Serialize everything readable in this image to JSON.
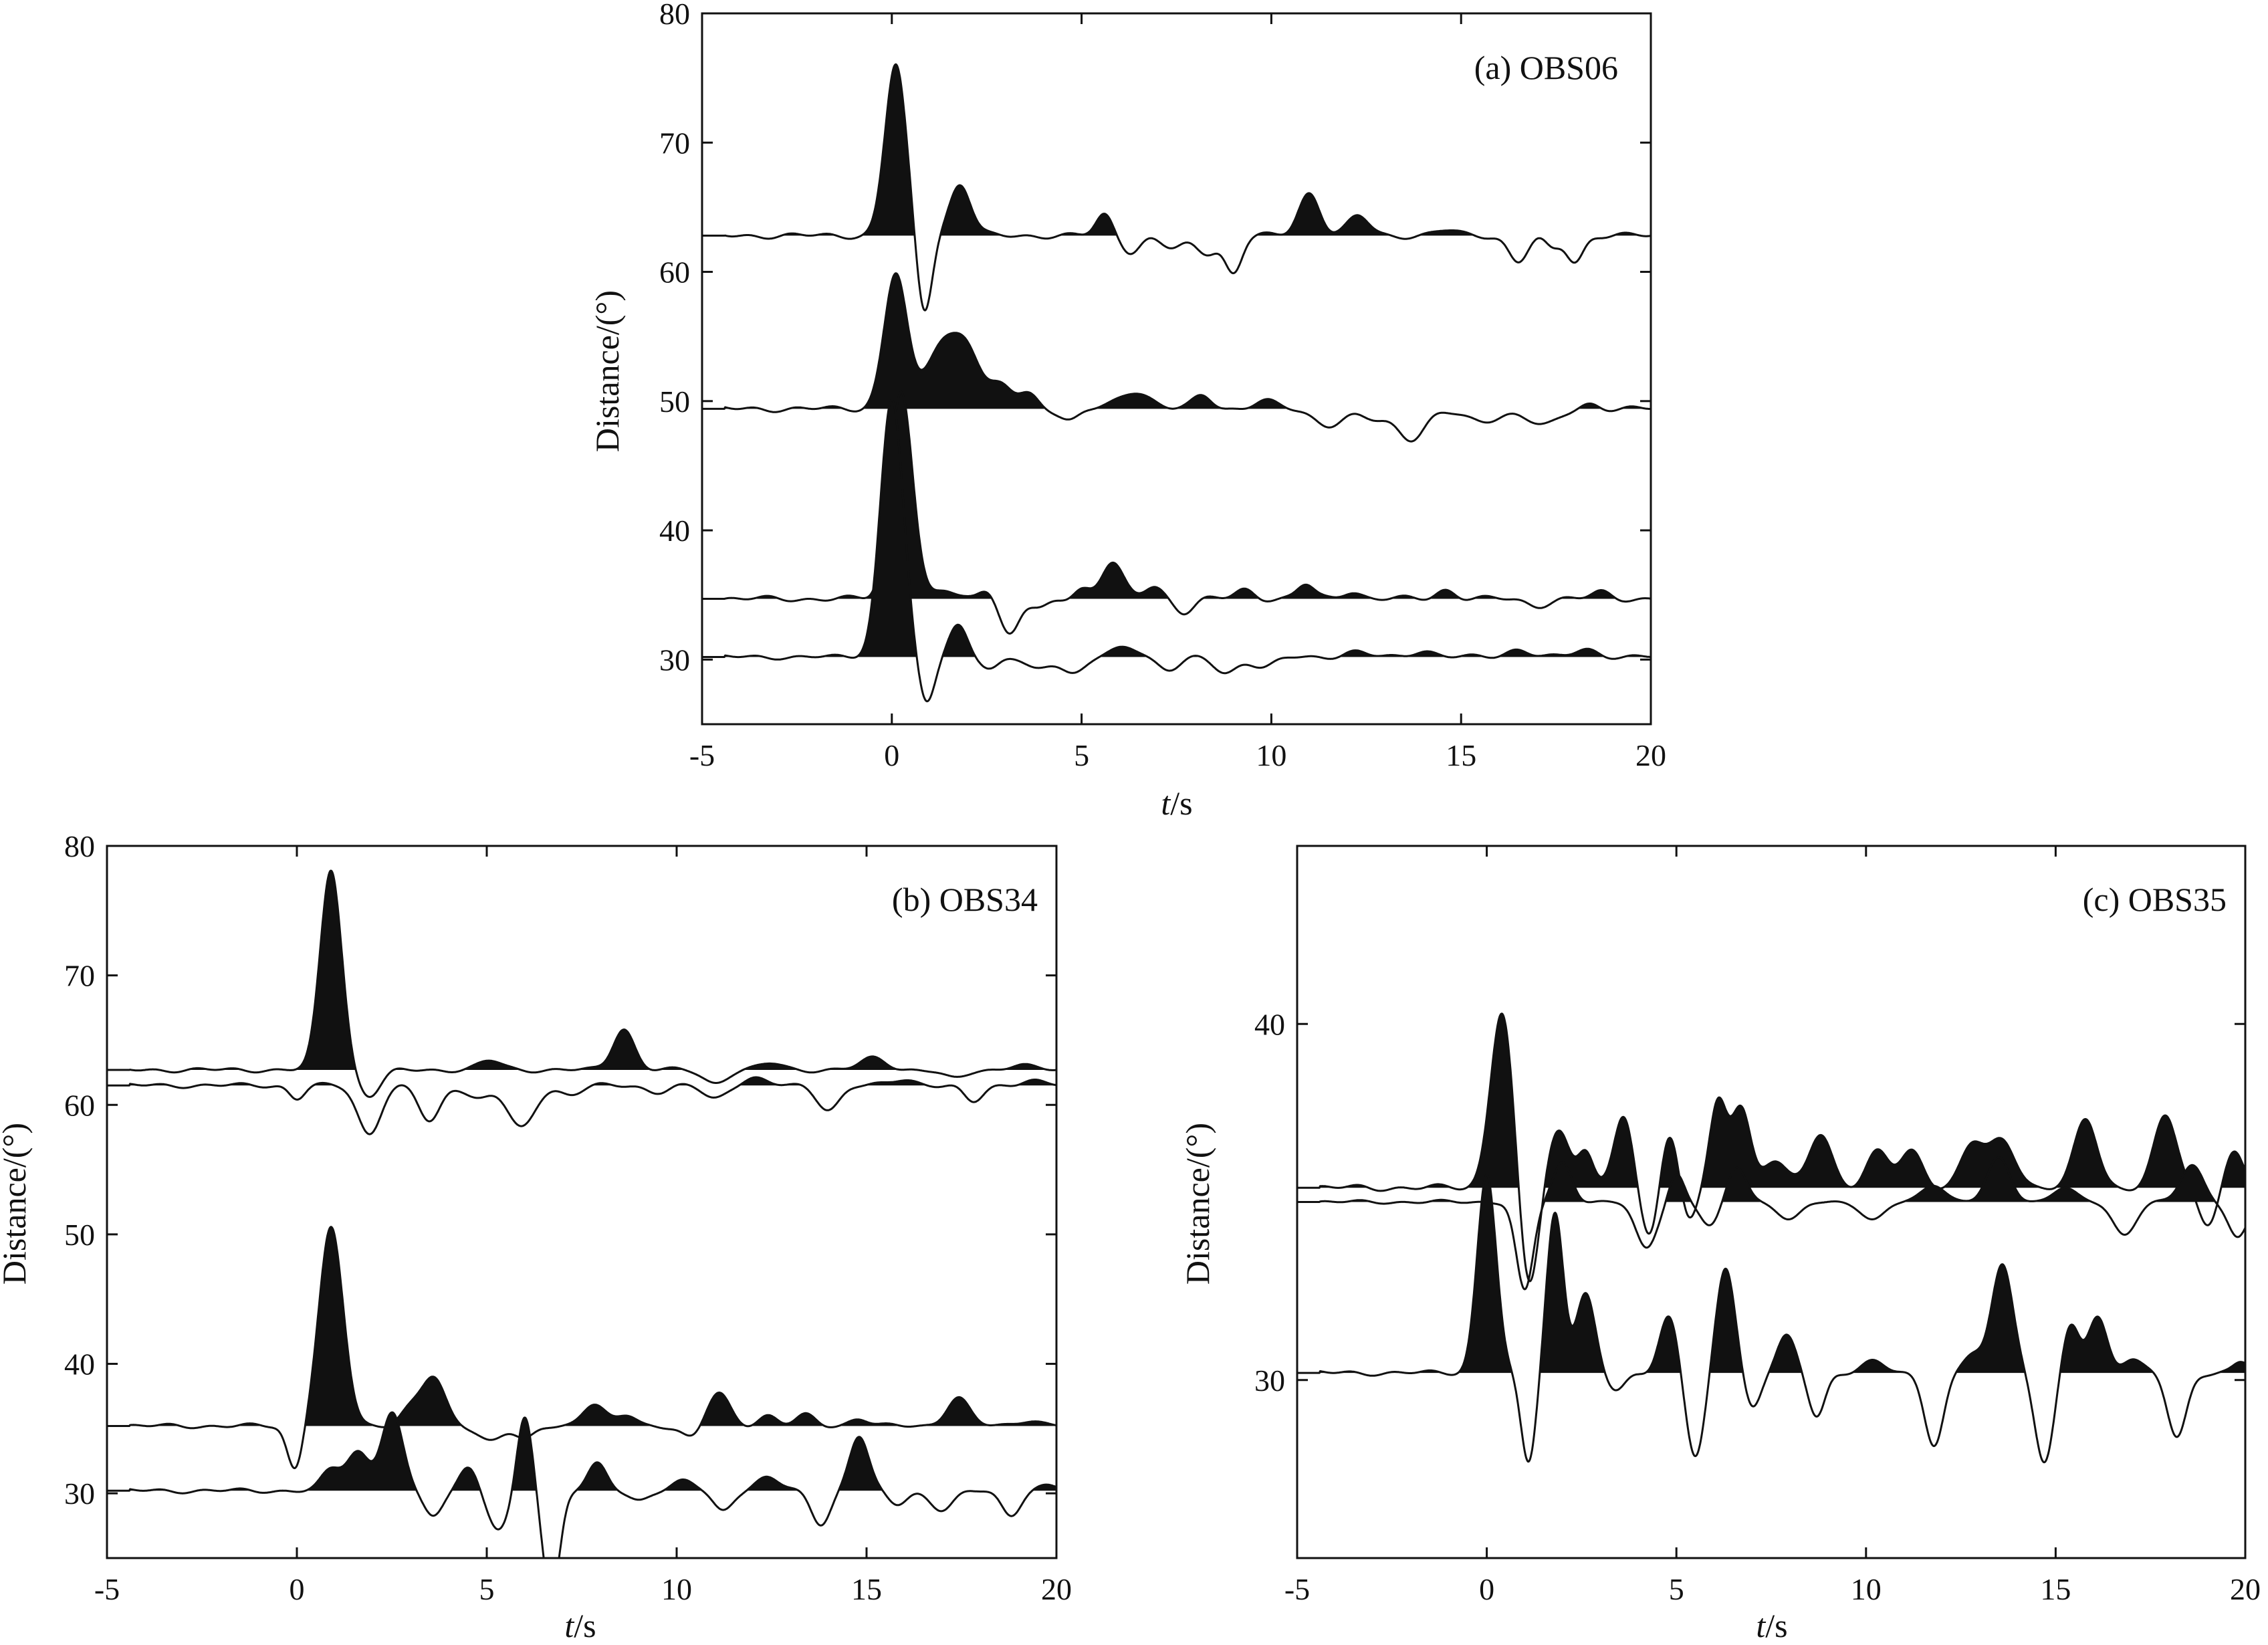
{
  "chart_data": [
    {
      "type": "line",
      "title": "(a) OBS06",
      "xlabel_italic": "t",
      "xlabel_unit": "/s",
      "ylabel": "Distance/(°)",
      "xlim": [
        -5,
        20
      ],
      "ylim": [
        25,
        80
      ],
      "xticks": [
        -5,
        0,
        5,
        10,
        15,
        20
      ],
      "yticks": [
        30,
        40,
        50,
        60,
        70,
        80
      ],
      "ytick_labels": [
        "30",
        "40",
        "50",
        "60",
        "70",
        "80"
      ],
      "series": [
        {
          "baseline": 62.8,
          "start": -5.0,
          "wavelets": [
            [
              0.1,
              13.2,
              0.28
            ],
            [
              0.85,
              -6.0,
              0.2
            ],
            [
              1.8,
              4.0,
              0.28
            ],
            [
              5.6,
              1.6,
              0.22
            ],
            [
              6.3,
              -1.2,
              0.25
            ],
            [
              7.4,
              -1.0,
              0.3
            ],
            [
              8.3,
              -1.3,
              0.3
            ],
            [
              9.0,
              -2.8,
              0.22
            ],
            [
              11.0,
              3.3,
              0.28
            ],
            [
              12.3,
              1.5,
              0.28
            ],
            [
              14.6,
              0.4,
              0.3
            ],
            [
              16.5,
              -2.0,
              0.25
            ],
            [
              17.4,
              -1.0,
              0.2
            ],
            [
              18.0,
              -2.0,
              0.22
            ]
          ],
          "wiggle": 0.25
        },
        {
          "baseline": 49.4,
          "start": -5.0,
          "wavelets": [
            [
              0.1,
              10.5,
              0.3
            ],
            [
              1.3,
              4.8,
              0.4
            ],
            [
              2.0,
              4.3,
              0.35
            ],
            [
              2.9,
              1.7,
              0.3
            ],
            [
              3.6,
              1.1,
              0.25
            ],
            [
              4.7,
              -0.9,
              0.25
            ],
            [
              6.4,
              1.4,
              0.4
            ],
            [
              8.2,
              1.0,
              0.25
            ],
            [
              9.8,
              0.6,
              0.3
            ],
            [
              11.5,
              -1.2,
              0.4
            ],
            [
              12.8,
              -0.9,
              0.4
            ],
            [
              13.7,
              -2.2,
              0.35
            ],
            [
              15.5,
              -1.0,
              0.5
            ],
            [
              17.2,
              -1.3,
              0.4
            ],
            [
              18.4,
              0.4,
              0.25
            ]
          ],
          "wiggle": 0.25
        },
        {
          "baseline": 34.7,
          "start": -5.0,
          "wavelets": [
            [
              0.25,
              16.2,
              0.3
            ],
            [
              1.4,
              0.6,
              0.25
            ],
            [
              2.5,
              0.9,
              0.22
            ],
            [
              3.1,
              -2.8,
              0.25
            ],
            [
              3.9,
              -0.8,
              0.25
            ],
            [
              5.0,
              0.8,
              0.22
            ],
            [
              5.8,
              2.8,
              0.28
            ],
            [
              6.9,
              1.0,
              0.25
            ],
            [
              7.7,
              -1.0,
              0.25
            ],
            [
              9.3,
              0.7,
              0.25
            ],
            [
              10.9,
              1.1,
              0.22
            ],
            [
              12.1,
              0.6,
              0.25
            ],
            [
              14.6,
              0.7,
              0.25
            ],
            [
              17.0,
              -0.5,
              0.3
            ],
            [
              18.7,
              0.5,
              0.25
            ]
          ],
          "wiggle": 0.25
        },
        {
          "baseline": 30.2,
          "start": -5.0,
          "wavelets": [
            [
              0.0,
              20.0,
              0.3
            ],
            [
              0.9,
              -3.7,
              0.22
            ],
            [
              1.75,
              2.5,
              0.25
            ],
            [
              2.6,
              -1.0,
              0.25
            ],
            [
              3.8,
              -0.9,
              0.3
            ],
            [
              4.8,
              -1.3,
              0.3
            ],
            [
              6.2,
              0.8,
              0.35
            ],
            [
              7.3,
              -1.0,
              0.3
            ],
            [
              8.8,
              -1.2,
              0.3
            ],
            [
              9.8,
              -0.8,
              0.3
            ],
            [
              12.2,
              0.4,
              0.3
            ],
            [
              14.0,
              0.5,
              0.3
            ],
            [
              16.5,
              0.6,
              0.3
            ],
            [
              18.3,
              0.6,
              0.3
            ]
          ],
          "wiggle": 0.2
        }
      ]
    },
    {
      "type": "line",
      "title": "(b) OBS34",
      "xlabel_italic": "t",
      "xlabel_unit": "/s",
      "ylabel": "Distance/(°)",
      "xlim": [
        -5,
        20
      ],
      "ylim": [
        25,
        80
      ],
      "xticks": [
        -5,
        0,
        5,
        10,
        15,
        20
      ],
      "yticks": [
        30,
        40,
        50,
        60,
        70,
        80
      ],
      "ytick_labels": [
        "30",
        "40",
        "50",
        "60",
        "70",
        "80"
      ],
      "series": [
        {
          "baseline": 62.7,
          "start": -5.0,
          "wavelets": [
            [
              0.9,
              15.5,
              0.28
            ],
            [
              1.9,
              -2.0,
              0.3
            ],
            [
              5.1,
              0.7,
              0.3
            ],
            [
              8.6,
              3.2,
              0.28
            ],
            [
              11.0,
              -1.0,
              0.3
            ],
            [
              12.5,
              0.5,
              0.3
            ],
            [
              15.2,
              0.9,
              0.35
            ],
            [
              17.3,
              -0.7,
              0.3
            ],
            [
              19.0,
              0.4,
              0.3
            ]
          ],
          "wiggle": 0.2
        },
        {
          "baseline": 61.5,
          "start": -5.0,
          "wavelets": [
            [
              0.0,
              -1.0,
              0.2
            ],
            [
              1.9,
              -3.7,
              0.3
            ],
            [
              3.5,
              -2.8,
              0.28
            ],
            [
              4.8,
              -1.0,
              0.3
            ],
            [
              5.9,
              -3.3,
              0.35
            ],
            [
              7.2,
              -0.7,
              0.3
            ],
            [
              9.5,
              -0.5,
              0.3
            ],
            [
              11.0,
              -1.0,
              0.3
            ],
            [
              12.0,
              0.6,
              0.3
            ],
            [
              14.0,
              -1.8,
              0.3
            ],
            [
              16.0,
              0.5,
              0.3
            ],
            [
              17.8,
              -1.3,
              0.25
            ],
            [
              19.3,
              0.4,
              0.3
            ]
          ],
          "wiggle": 0.2
        },
        {
          "baseline": 35.2,
          "start": -5.0,
          "wavelets": [
            [
              -0.05,
              -3.4,
              0.2
            ],
            [
              0.9,
              15.2,
              0.32
            ],
            [
              3.0,
              1.3,
              0.3
            ],
            [
              3.6,
              3.6,
              0.3
            ],
            [
              5.1,
              -1.1,
              0.3
            ],
            [
              6.0,
              -1.1,
              0.25
            ],
            [
              7.8,
              1.7,
              0.3
            ],
            [
              8.7,
              0.8,
              0.25
            ],
            [
              10.4,
              -1.0,
              0.25
            ],
            [
              11.1,
              2.5,
              0.3
            ],
            [
              12.4,
              0.8,
              0.25
            ],
            [
              13.4,
              0.8,
              0.25
            ],
            [
              14.8,
              0.6,
              0.25
            ],
            [
              17.4,
              2.2,
              0.3
            ],
            [
              19.3,
              0.5,
              0.3
            ]
          ],
          "wiggle": 0.2
        },
        {
          "baseline": 30.2,
          "start": -5.0,
          "wavelets": [
            [
              0.9,
              1.5,
              0.25
            ],
            [
              1.6,
              3.0,
              0.3
            ],
            [
              2.5,
              6.0,
              0.28
            ],
            [
              3.6,
              -2.0,
              0.25
            ],
            [
              4.5,
              2.0,
              0.25
            ],
            [
              5.3,
              -3.0,
              0.3
            ],
            [
              6.0,
              5.8,
              0.2
            ],
            [
              6.7,
              -8.0,
              0.22
            ],
            [
              7.9,
              2.0,
              0.25
            ],
            [
              9.0,
              -0.7,
              0.25
            ],
            [
              10.2,
              0.7,
              0.3
            ],
            [
              11.2,
              -1.5,
              0.25
            ],
            [
              12.4,
              1.0,
              0.3
            ],
            [
              13.8,
              -2.5,
              0.25
            ],
            [
              14.8,
              4.2,
              0.25
            ],
            [
              15.8,
              -1.0,
              0.25
            ],
            [
              17.0,
              -1.5,
              0.3
            ],
            [
              18.8,
              -1.8,
              0.25
            ],
            [
              19.8,
              0.4,
              0.25
            ]
          ],
          "wiggle": 0.2
        }
      ]
    },
    {
      "type": "line",
      "title": "(c) OBS35",
      "xlabel_italic": "t",
      "xlabel_unit": "/s",
      "ylabel": "Distance/(°)",
      "xlim": [
        -5,
        20
      ],
      "ylim": [
        25,
        45
      ],
      "xticks": [
        -5,
        0,
        5,
        10,
        15,
        20
      ],
      "yticks": [
        30,
        40
      ],
      "ytick_labels": [
        "30",
        "40"
      ],
      "series": [
        {
          "baseline": 35.4,
          "start": -5.0,
          "wavelets": [
            [
              0.4,
              5.0,
              0.3
            ],
            [
              1.1,
              -3.0,
              0.25
            ],
            [
              1.9,
              1.6,
              0.3
            ],
            [
              2.6,
              1.0,
              0.2
            ],
            [
              3.6,
              2.0,
              0.25
            ],
            [
              4.3,
              -1.5,
              0.25
            ],
            [
              4.8,
              1.7,
              0.25
            ],
            [
              5.3,
              -1.0,
              0.22
            ],
            [
              6.1,
              2.3,
              0.22
            ],
            [
              6.7,
              2.3,
              0.25
            ],
            [
              7.6,
              0.8,
              0.3
            ],
            [
              8.8,
              1.5,
              0.3
            ],
            [
              10.3,
              1.0,
              0.3
            ],
            [
              11.2,
              1.0,
              0.3
            ],
            [
              12.8,
              1.2,
              0.3
            ],
            [
              13.6,
              1.3,
              0.35
            ],
            [
              15.8,
              1.9,
              0.3
            ],
            [
              17.9,
              2.0,
              0.3
            ],
            [
              19.0,
              -1.0,
              0.25
            ],
            [
              19.7,
              1.0,
              0.25
            ]
          ],
          "wiggle": 0.1
        },
        {
          "baseline": 35.0,
          "start": -5.0,
          "wavelets": [
            [
              1.0,
              -2.5,
              0.22
            ],
            [
              2.0,
              1.1,
              0.25
            ],
            [
              4.2,
              -1.3,
              0.28
            ],
            [
              5.0,
              0.8,
              0.2
            ],
            [
              5.9,
              -0.7,
              0.25
            ],
            [
              6.6,
              1.0,
              0.25
            ],
            [
              8.0,
              -0.5,
              0.3
            ],
            [
              10.2,
              -0.5,
              0.3
            ],
            [
              11.8,
              0.5,
              0.3
            ],
            [
              13.5,
              1.2,
              0.3
            ],
            [
              15.2,
              0.4,
              0.3
            ],
            [
              16.8,
              -0.9,
              0.3
            ],
            [
              18.6,
              1.0,
              0.3
            ],
            [
              19.8,
              -1.0,
              0.25
            ]
          ],
          "wiggle": 0.06
        },
        {
          "baseline": 30.2,
          "start": -5.0,
          "wavelets": [
            [
              0.0,
              5.6,
              0.25
            ],
            [
              1.1,
              -2.5,
              0.2
            ],
            [
              1.8,
              4.5,
              0.22
            ],
            [
              2.6,
              2.2,
              0.25
            ],
            [
              3.4,
              -0.5,
              0.25
            ],
            [
              4.8,
              1.6,
              0.25
            ],
            [
              5.5,
              -2.4,
              0.25
            ],
            [
              6.3,
              3.0,
              0.25
            ],
            [
              7.0,
              -1.0,
              0.22
            ],
            [
              7.9,
              1.0,
              0.25
            ],
            [
              8.7,
              -1.2,
              0.22
            ],
            [
              10.2,
              0.3,
              0.3
            ],
            [
              11.8,
              -2.0,
              0.25
            ],
            [
              12.8,
              0.5,
              0.25
            ],
            [
              13.6,
              3.1,
              0.28
            ],
            [
              14.7,
              -2.5,
              0.25
            ],
            [
              15.4,
              1.3,
              0.22
            ],
            [
              16.1,
              1.6,
              0.25
            ],
            [
              17.0,
              0.4,
              0.25
            ],
            [
              18.2,
              -1.8,
              0.25
            ],
            [
              19.9,
              0.3,
              0.2
            ]
          ],
          "wiggle": 0.08
        }
      ]
    }
  ]
}
